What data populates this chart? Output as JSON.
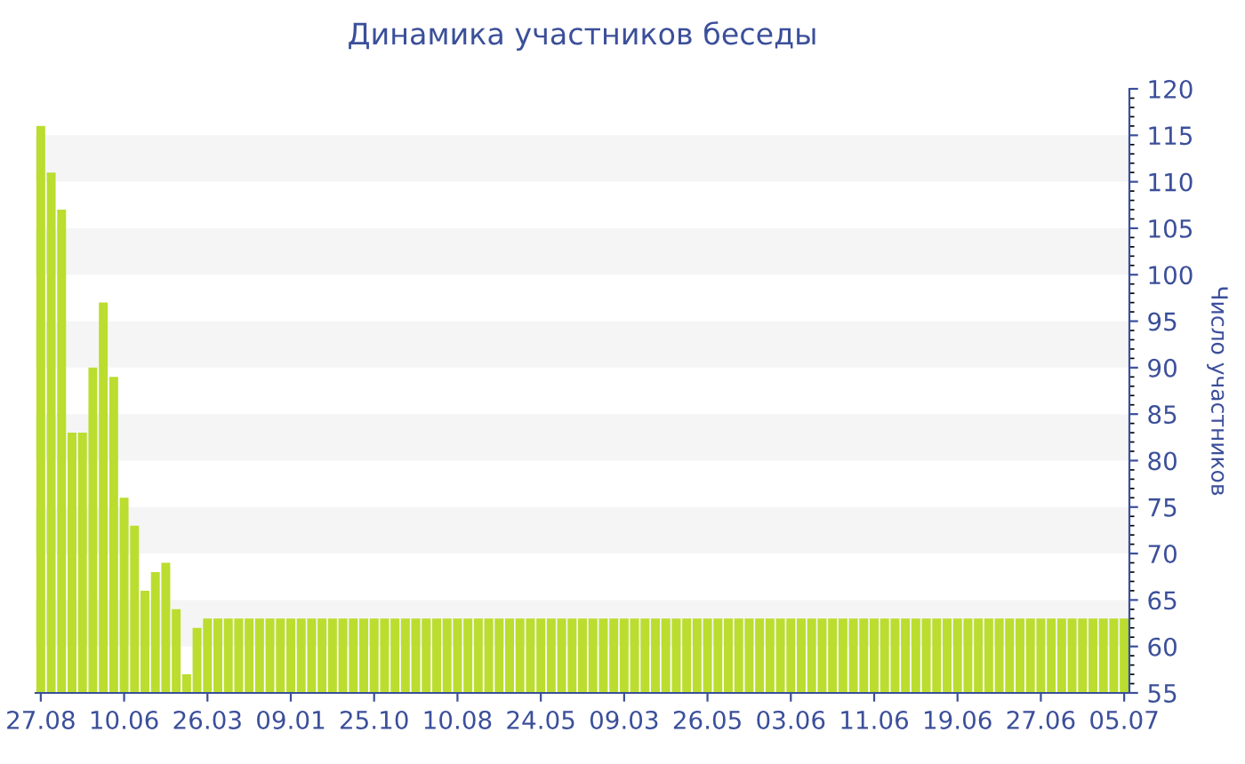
{
  "chart_data": {
    "type": "bar",
    "title": "Динамика участников беседы",
    "ylabel": "Число участников",
    "categories": [
      "27.08",
      null,
      null,
      null,
      null,
      null,
      null,
      null,
      "10.06",
      null,
      null,
      null,
      null,
      null,
      null,
      null,
      "26.03",
      null,
      null,
      null,
      null,
      null,
      null,
      null,
      "09.01",
      null,
      null,
      null,
      null,
      null,
      null,
      null,
      "25.10",
      null,
      null,
      null,
      null,
      null,
      null,
      null,
      "10.08",
      null,
      null,
      null,
      null,
      null,
      null,
      null,
      "24.05",
      null,
      null,
      null,
      null,
      null,
      null,
      null,
      "09.03",
      null,
      null,
      null,
      null,
      null,
      null,
      null,
      "26.05",
      null,
      null,
      null,
      null,
      null,
      null,
      null,
      "03.06",
      null,
      null,
      null,
      null,
      null,
      null,
      null,
      "11.06",
      null,
      null,
      null,
      null,
      null,
      null,
      null,
      "19.06",
      null,
      null,
      null,
      null,
      null,
      null,
      null,
      "27.06",
      null,
      null,
      null,
      null,
      null,
      null,
      null,
      "05.07"
    ],
    "values": [
      116,
      111,
      107,
      83,
      83,
      90,
      97,
      89,
      76,
      73,
      66,
      68,
      69,
      64,
      57,
      62,
      63,
      63,
      63,
      63,
      63,
      63,
      63,
      63,
      63,
      63,
      63,
      63,
      63,
      63,
      63,
      63,
      63,
      63,
      63,
      63,
      63,
      63,
      63,
      63,
      63,
      63,
      63,
      63,
      63,
      63,
      63,
      63,
      63,
      63,
      63,
      63,
      63,
      63,
      63,
      63,
      63,
      63,
      63,
      63,
      63,
      63,
      63,
      63,
      63,
      63,
      63,
      63,
      63,
      63,
      63,
      63,
      63,
      63,
      63,
      63,
      63,
      63,
      63,
      63,
      63,
      63,
      63,
      63,
      63,
      63,
      63,
      63,
      63,
      63,
      63,
      63,
      63,
      63,
      63,
      63,
      63,
      63,
      63,
      63,
      63,
      63,
      63,
      63,
      63
    ],
    "color": "#bbdd2f",
    "ylim": [
      55,
      120
    ],
    "yticks": [
      55,
      60,
      65,
      70,
      75,
      80,
      85,
      90,
      95,
      100,
      105,
      110,
      115,
      120
    ],
    "legend": false,
    "bands": [
      {
        "axis": "y",
        "from": 60,
        "to": 65,
        "color": "#f5f5f5"
      },
      {
        "axis": "y",
        "from": 70,
        "to": 75,
        "color": "#f5f5f5"
      },
      {
        "axis": "y",
        "from": 80,
        "to": 85,
        "color": "#f5f5f5"
      },
      {
        "axis": "y",
        "from": 90,
        "to": 95,
        "color": "#f5f5f5"
      },
      {
        "axis": "y",
        "from": 100,
        "to": 105,
        "color": "#f5f5f5"
      },
      {
        "axis": "y",
        "from": 110,
        "to": 115,
        "color": "#f5f5f5"
      }
    ]
  }
}
